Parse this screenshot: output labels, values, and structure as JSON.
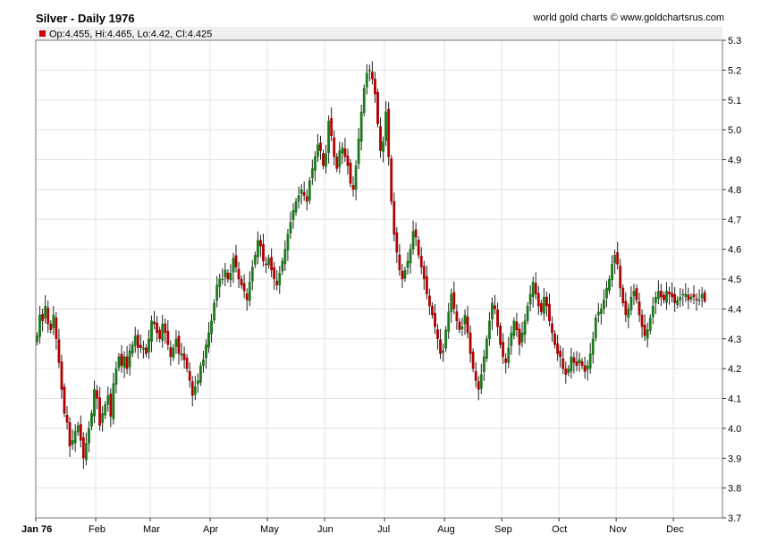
{
  "header": {
    "title": "Silver - Daily 1976",
    "credit": "world gold charts © www.goldchartsrus.com"
  },
  "legend": {
    "ohlc": "Op:4.455, Hi:4.465, Lo:4.42, Cl:4.425",
    "marker_color": "#cc0000"
  },
  "colors": {
    "up": "#1a7a1a",
    "down": "#b00000",
    "grid": "#e3e3e3",
    "frame": "#777777"
  },
  "chart_data": {
    "type": "candlestick",
    "title": "Silver - Daily 1976",
    "ylim": [
      3.7,
      5.3
    ],
    "y_ticks": [
      5.3,
      5.2,
      5.1,
      5.0,
      4.9,
      4.8,
      4.7,
      4.6,
      4.5,
      4.4,
      4.3,
      4.2,
      4.1,
      4.0,
      3.9,
      3.8,
      3.7
    ],
    "y_tick_labels": [
      "5.3",
      "5.2",
      "5.1",
      "5.0",
      "4.9",
      "4.8",
      "4.7",
      "4.6",
      "4.5",
      "4.4",
      "4.3",
      "4.2",
      "4.1",
      "4.0",
      "3.9",
      "3.8",
      "3.7"
    ],
    "x_ticks": [
      "Jan 76",
      "Feb",
      "Mar",
      "Apr",
      "May",
      "Jun",
      "Jul",
      "Aug",
      "Sep",
      "Oct",
      "Nov",
      "Dec"
    ],
    "tick_day": [
      0,
      22,
      42,
      64,
      85,
      106,
      128,
      150,
      171,
      192,
      213,
      234
    ],
    "x_days": 252,
    "grid": true,
    "close": [
      4.31,
      4.38,
      4.36,
      4.41,
      4.35,
      4.33,
      4.38,
      4.3,
      4.22,
      4.13,
      4.05,
      4.02,
      3.94,
      3.96,
      3.99,
      4.01,
      3.96,
      3.9,
      3.95,
      4.0,
      4.05,
      4.13,
      4.1,
      4.01,
      4.05,
      4.08,
      4.11,
      4.04,
      4.15,
      4.2,
      4.24,
      4.21,
      4.24,
      4.2,
      4.26,
      4.28,
      4.31,
      4.27,
      4.27,
      4.27,
      4.25,
      4.3,
      4.36,
      4.35,
      4.32,
      4.3,
      4.35,
      4.32,
      4.28,
      4.24,
      4.27,
      4.3,
      4.25,
      4.25,
      4.23,
      4.2,
      4.16,
      4.11,
      4.14,
      4.16,
      4.21,
      4.23,
      4.28,
      4.32,
      4.36,
      4.42,
      4.48,
      4.5,
      4.5,
      4.53,
      4.5,
      4.52,
      4.57,
      4.54,
      4.5,
      4.48,
      4.46,
      4.43,
      4.49,
      4.54,
      4.58,
      4.63,
      4.61,
      4.56,
      4.55,
      4.57,
      4.53,
      4.5,
      4.48,
      4.52,
      4.56,
      4.6,
      4.65,
      4.69,
      4.73,
      4.76,
      4.78,
      4.8,
      4.78,
      4.76,
      4.83,
      4.87,
      4.91,
      4.95,
      4.93,
      4.88,
      4.92,
      5.03,
      4.98,
      4.91,
      4.87,
      4.93,
      4.94,
      4.91,
      4.88,
      4.82,
      4.8,
      4.88,
      4.97,
      5.06,
      5.14,
      5.19,
      5.2,
      5.17,
      5.12,
      5.02,
      4.93,
      4.96,
      5.06,
      4.91,
      4.76,
      4.65,
      4.59,
      4.53,
      4.5,
      4.53,
      4.56,
      4.6,
      4.66,
      4.64,
      4.58,
      4.54,
      4.5,
      4.45,
      4.41,
      4.38,
      4.34,
      4.3,
      4.25,
      4.26,
      4.33,
      4.39,
      4.45,
      4.4,
      4.36,
      4.33,
      4.34,
      4.38,
      4.32,
      4.25,
      4.2,
      4.16,
      4.13,
      4.18,
      4.24,
      4.3,
      4.36,
      4.42,
      4.4,
      4.34,
      4.28,
      4.24,
      4.22,
      4.27,
      4.32,
      4.36,
      4.33,
      4.28,
      4.32,
      4.36,
      4.41,
      4.45,
      4.49,
      4.45,
      4.41,
      4.39,
      4.44,
      4.41,
      4.36,
      4.32,
      4.28,
      4.25,
      4.24,
      4.2,
      4.18,
      4.2,
      4.24,
      4.22,
      4.21,
      4.23,
      4.21,
      4.19,
      4.21,
      4.25,
      4.3,
      4.37,
      4.39,
      4.4,
      4.43,
      4.47,
      4.5,
      4.55,
      4.58,
      4.55,
      4.47,
      4.42,
      4.38,
      4.4,
      4.44,
      4.46,
      4.43,
      4.38,
      4.34,
      4.31,
      4.33,
      4.37,
      4.41,
      4.44,
      4.46,
      4.44,
      4.43,
      4.46,
      4.45,
      4.44,
      4.42,
      4.43,
      4.44,
      4.45,
      4.45,
      4.43,
      4.44,
      4.44,
      4.43,
      4.43,
      4.45,
      4.425
    ],
    "last_candle": {
      "open": 4.455,
      "high": 4.465,
      "low": 4.42,
      "close": 4.425
    }
  }
}
